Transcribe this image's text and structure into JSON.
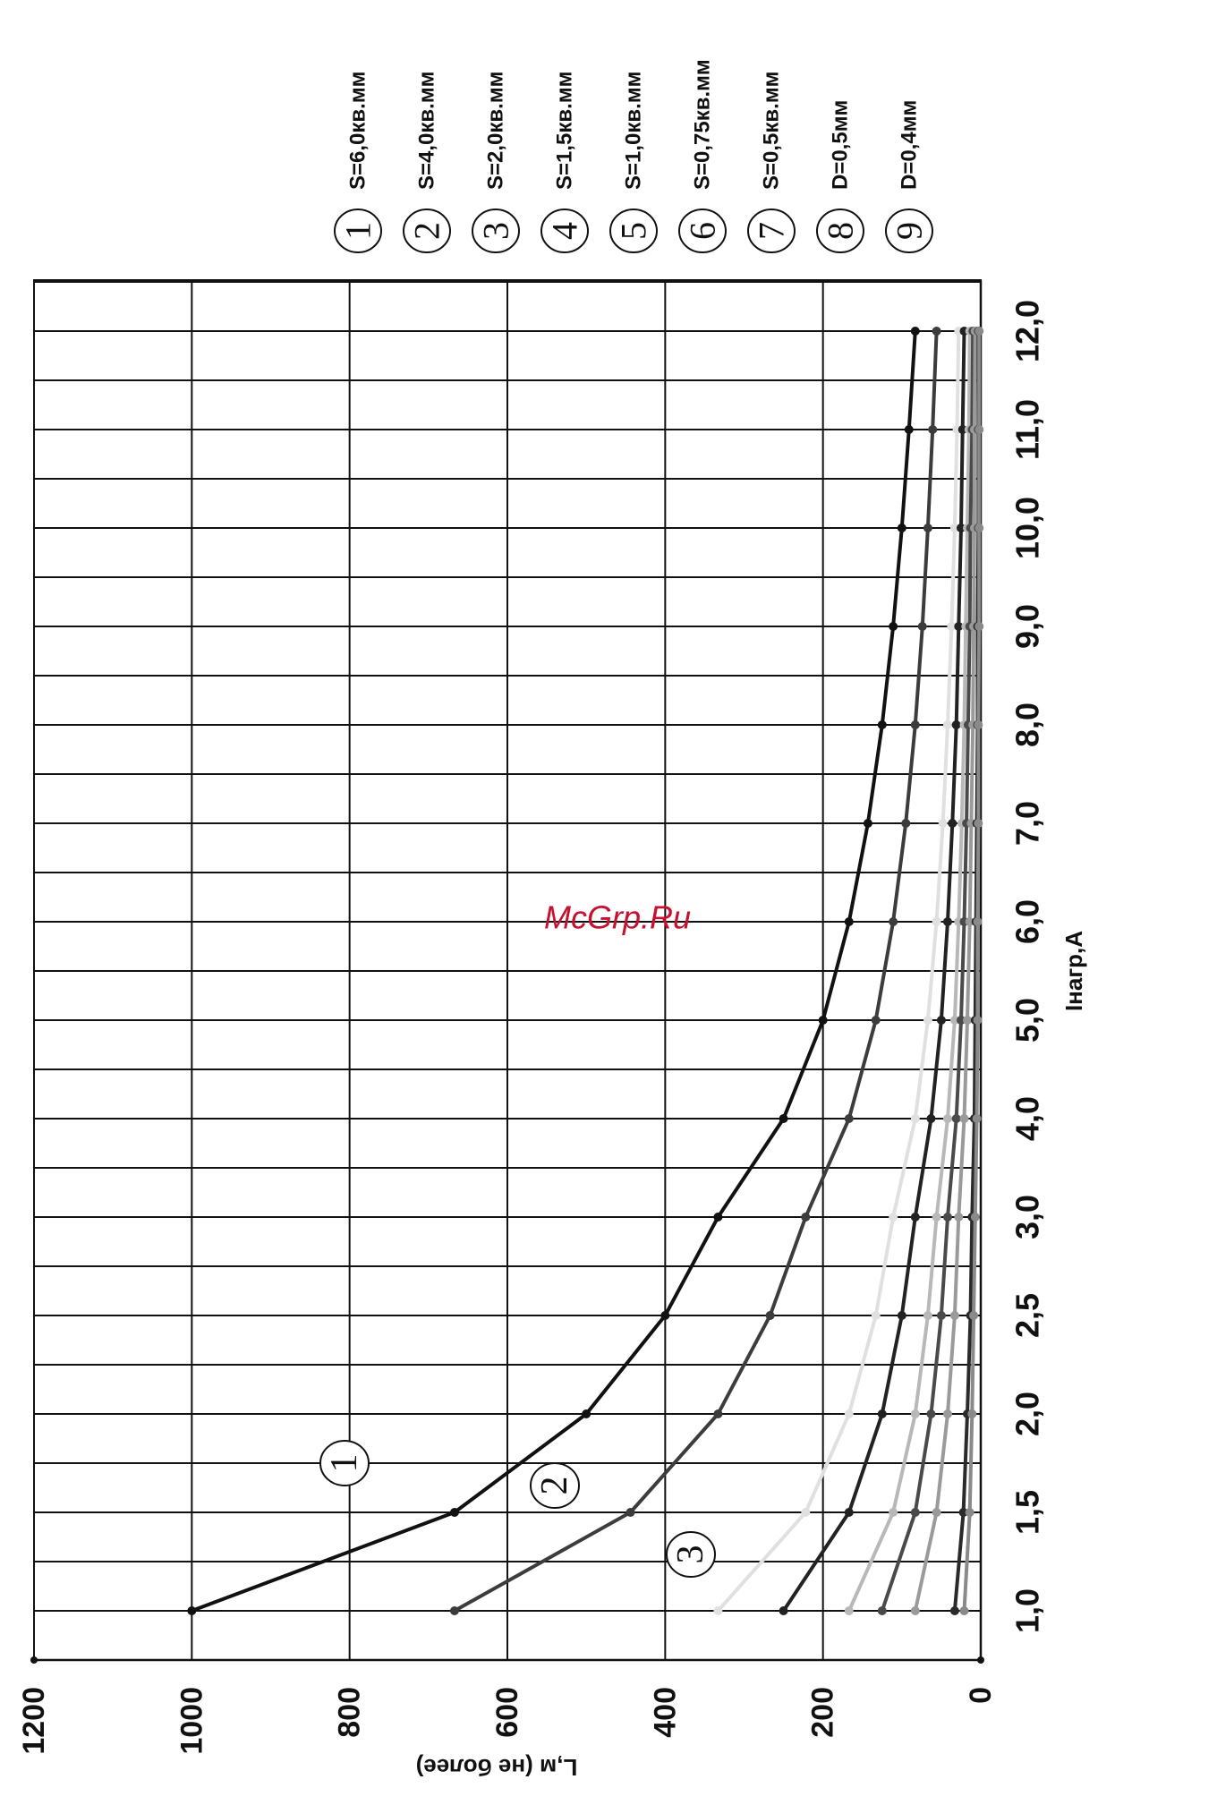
{
  "chart_data": {
    "type": "line",
    "xlabel": "Iнагр,А",
    "ylabel": "L,м (не более)",
    "categories": [
      "1,0",
      "1,5",
      "2,0",
      "2,5",
      "3,0",
      "4,0",
      "5,0",
      "6,0",
      "7,0",
      "8,0",
      "9,0",
      "10,0",
      "11,0",
      "12,0"
    ],
    "x": [
      1.0,
      1.5,
      2.0,
      2.5,
      3.0,
      4.0,
      5.0,
      6.0,
      7.0,
      8.0,
      9.0,
      10.0,
      11.0,
      12.0
    ],
    "y_ticks": [
      "0",
      "200",
      "400",
      "600",
      "800",
      "1000",
      "1200"
    ],
    "ylim": [
      0,
      1200
    ],
    "grid": true,
    "legend_position": "top-right",
    "series": [
      {
        "num": "1",
        "name": "S=6,0кв.мм",
        "color": "#111111",
        "values": [
          1000,
          667,
          500,
          400,
          333,
          250,
          200,
          167,
          143,
          125,
          111,
          100,
          91,
          83
        ]
      },
      {
        "num": "2",
        "name": "S=4,0кв.мм",
        "color": "#3c3c3c",
        "values": [
          667,
          444,
          333,
          267,
          222,
          167,
          133,
          111,
          95,
          83,
          74,
          67,
          61,
          56
        ]
      },
      {
        "num": "3",
        "name": "S=2,0кв.мм",
        "color": "#e0e0e0",
        "values": [
          333,
          222,
          167,
          133,
          111,
          83,
          67,
          56,
          48,
          42,
          37,
          33,
          30,
          28
        ]
      },
      {
        "num": "4",
        "name": "S=1,5кв.мм",
        "color": "#222222",
        "values": [
          250,
          167,
          125,
          100,
          83,
          63,
          50,
          42,
          36,
          31,
          28,
          25,
          23,
          21
        ]
      },
      {
        "num": "5",
        "name": "S=1,0кв.мм",
        "color": "#b8b8b8",
        "values": [
          167,
          111,
          83,
          67,
          56,
          42,
          33,
          28,
          24,
          21,
          19,
          17,
          15,
          14
        ]
      },
      {
        "num": "6",
        "name": "S=0,75кв.мм",
        "color": "#4a4a4a",
        "values": [
          125,
          83,
          63,
          50,
          42,
          31,
          25,
          21,
          18,
          16,
          14,
          13,
          11,
          10
        ]
      },
      {
        "num": "7",
        "name": "S=0,5кв.мм",
        "color": "#9a9a9a",
        "values": [
          83,
          56,
          42,
          33,
          28,
          21,
          17,
          14,
          12,
          10,
          9,
          8,
          8,
          7
        ]
      },
      {
        "num": "8",
        "name": "D=0,5мм",
        "color": "#2a2a2a",
        "values": [
          33,
          22,
          17,
          13,
          11,
          8,
          7,
          6,
          5,
          4,
          4,
          3,
          3,
          3
        ]
      },
      {
        "num": "9",
        "name": "D=0,4мм",
        "color": "#8a8a8a",
        "values": [
          21,
          14,
          11,
          9,
          7,
          5,
          4,
          4,
          3,
          3,
          2,
          2,
          2,
          2
        ]
      }
    ],
    "curve_labels": [
      "1",
      "2",
      "3"
    ],
    "watermark": "McGrp.Ru"
  }
}
